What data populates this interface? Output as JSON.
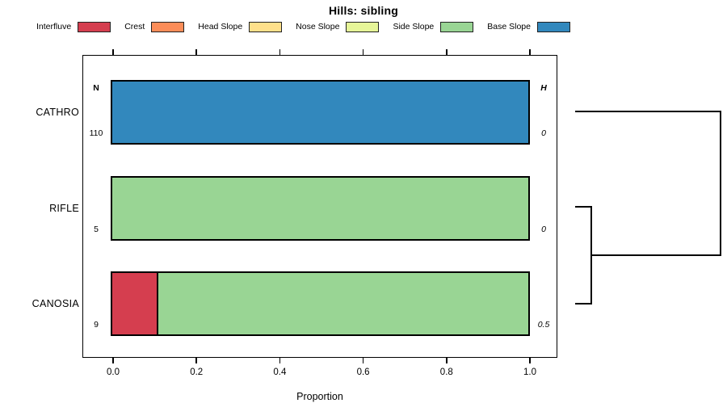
{
  "title": "Hills: sibling",
  "chart_data": {
    "type": "bar",
    "orientation": "horizontal",
    "stacked": true,
    "title": "Hills: sibling",
    "xlabel": "Proportion",
    "ylabel": "",
    "xlim": [
      0,
      1
    ],
    "xticks": [
      "0.0",
      "0.2",
      "0.4",
      "0.6",
      "0.8",
      "1.0"
    ],
    "grid": false,
    "legend_position": "top",
    "categories": [
      "CATHRO",
      "RIFLE",
      "CANOSIA"
    ],
    "series": [
      {
        "name": "Interfluve",
        "color": "#D53E4F",
        "values": [
          0,
          0,
          0.111
        ]
      },
      {
        "name": "Crest",
        "color": "#FC8D59",
        "values": [
          0,
          0,
          0
        ]
      },
      {
        "name": "Head Slope",
        "color": "#FEE08B",
        "values": [
          0,
          0,
          0
        ]
      },
      {
        "name": "Nose Slope",
        "color": "#E6F598",
        "values": [
          0,
          0,
          0
        ]
      },
      {
        "name": "Side Slope",
        "color": "#99D594",
        "values": [
          0,
          1,
          0.889
        ]
      },
      {
        "name": "Base Slope",
        "color": "#3288BD",
        "values": [
          1,
          0,
          0
        ]
      }
    ],
    "row_annotations": {
      "left_header": "N",
      "left_values": [
        "110",
        "5",
        "9"
      ],
      "right_header": "H",
      "right_values": [
        "0",
        "0",
        "0.5"
      ]
    },
    "dendrogram": {
      "position": "right-margin",
      "merges": [
        {
          "members": [
            "RIFLE",
            "CANOSIA"
          ],
          "relative_height": "small"
        },
        {
          "members": [
            "CATHRO",
            "RIFLE+CANOSIA"
          ],
          "relative_height": "large"
        }
      ]
    }
  }
}
